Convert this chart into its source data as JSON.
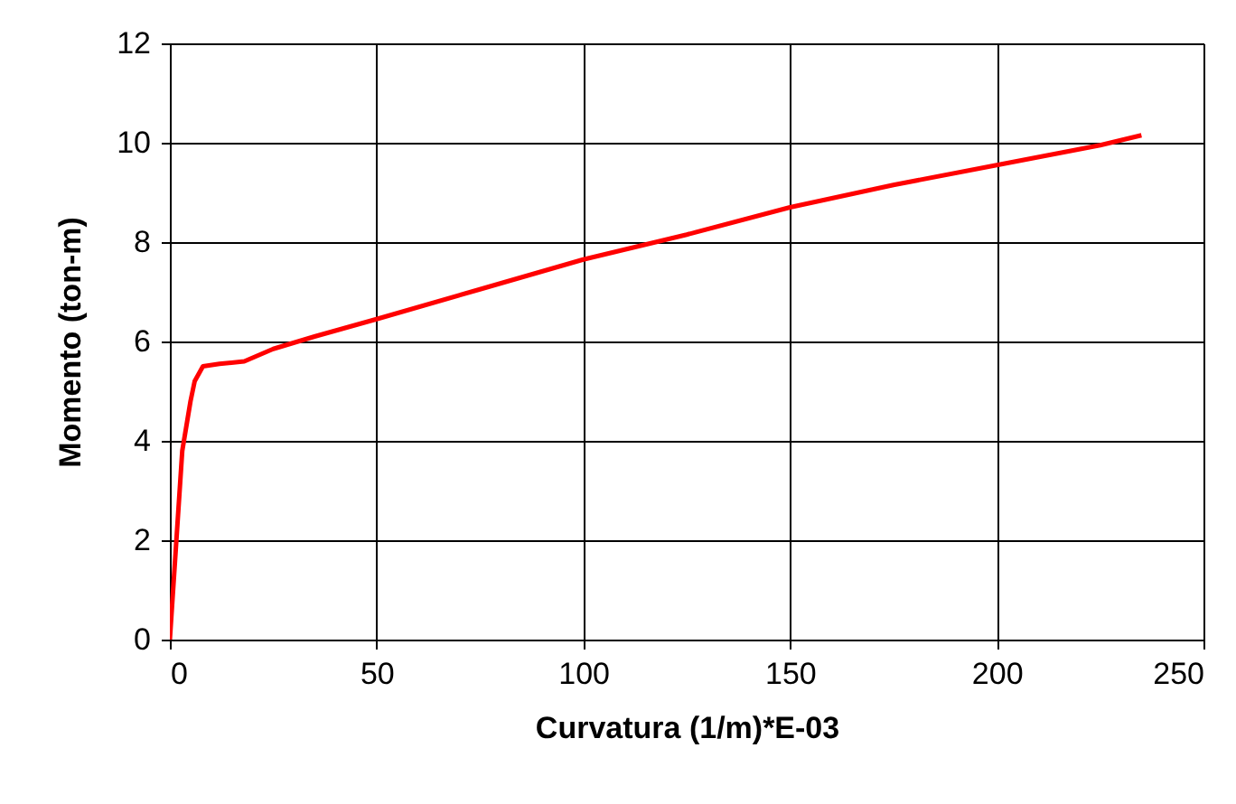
{
  "chart_data": {
    "type": "line",
    "xlabel": "Curvatura (1/m)*E-03",
    "ylabel": "Momento (ton-m)",
    "x": [
      0,
      3,
      5,
      6,
      8,
      12,
      18,
      25,
      35,
      50,
      75,
      100,
      125,
      150,
      175,
      200,
      225,
      235
    ],
    "series": [
      {
        "color": "#ff0000",
        "values": [
          0,
          3.8,
          4.8,
          5.2,
          5.5,
          5.55,
          5.6,
          5.85,
          6.1,
          6.45,
          7.05,
          7.65,
          8.15,
          8.7,
          9.15,
          9.55,
          9.95,
          10.15
        ]
      }
    ],
    "xlim": [
      0,
      250
    ],
    "xticks": [
      0,
      50,
      100,
      150,
      200,
      250
    ],
    "ylim": [
      0,
      12
    ],
    "yticks": [
      0,
      2,
      4,
      6,
      8,
      10,
      12
    ],
    "grid": true,
    "marker": "none",
    "line_style": "solid"
  }
}
